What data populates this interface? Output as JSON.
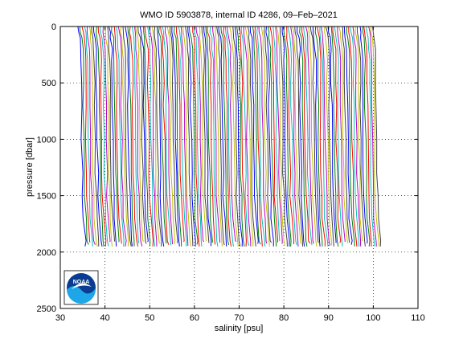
{
  "chart_data": {
    "type": "line",
    "title": "WMO ID 5903878, internal ID 4286, 09–Feb–2021",
    "xlabel": "salinity [psu]",
    "ylabel": "pressure [dbar]",
    "xlim": [
      30,
      110
    ],
    "ylim": [
      0,
      2500
    ],
    "y_reversed": true,
    "xticks": [
      30,
      40,
      50,
      60,
      70,
      80,
      90,
      100,
      110
    ],
    "yticks": [
      0,
      500,
      1000,
      1500,
      2000,
      2500
    ],
    "grid": "dotted",
    "legend": "none",
    "profile_offset_psu": 0.5,
    "profile_colors": [
      "#0000ff",
      "#008000",
      "#ff0000",
      "#00bfbf",
      "#bf00bf",
      "#bfbf00",
      "#404040"
    ],
    "logo": {
      "name": "noaa-logo",
      "text": "NOAA"
    },
    "series": {
      "count": 133,
      "first_profile_surface_salinity": 34.0,
      "offset_between_profiles": 0.5,
      "profile_shape": {
        "pressure": [
          0,
          50,
          100,
          200,
          300,
          500,
          700,
          1000,
          1300,
          1500,
          1700,
          1900,
          1950
        ],
        "salinity": [
          34.0,
          34.1,
          34.3,
          34.5,
          34.6,
          34.65,
          34.7,
          34.8,
          34.9,
          35.0,
          35.2,
          35.6,
          35.7
        ]
      },
      "max_pressure_range": [
        1900,
        1990
      ]
    }
  }
}
